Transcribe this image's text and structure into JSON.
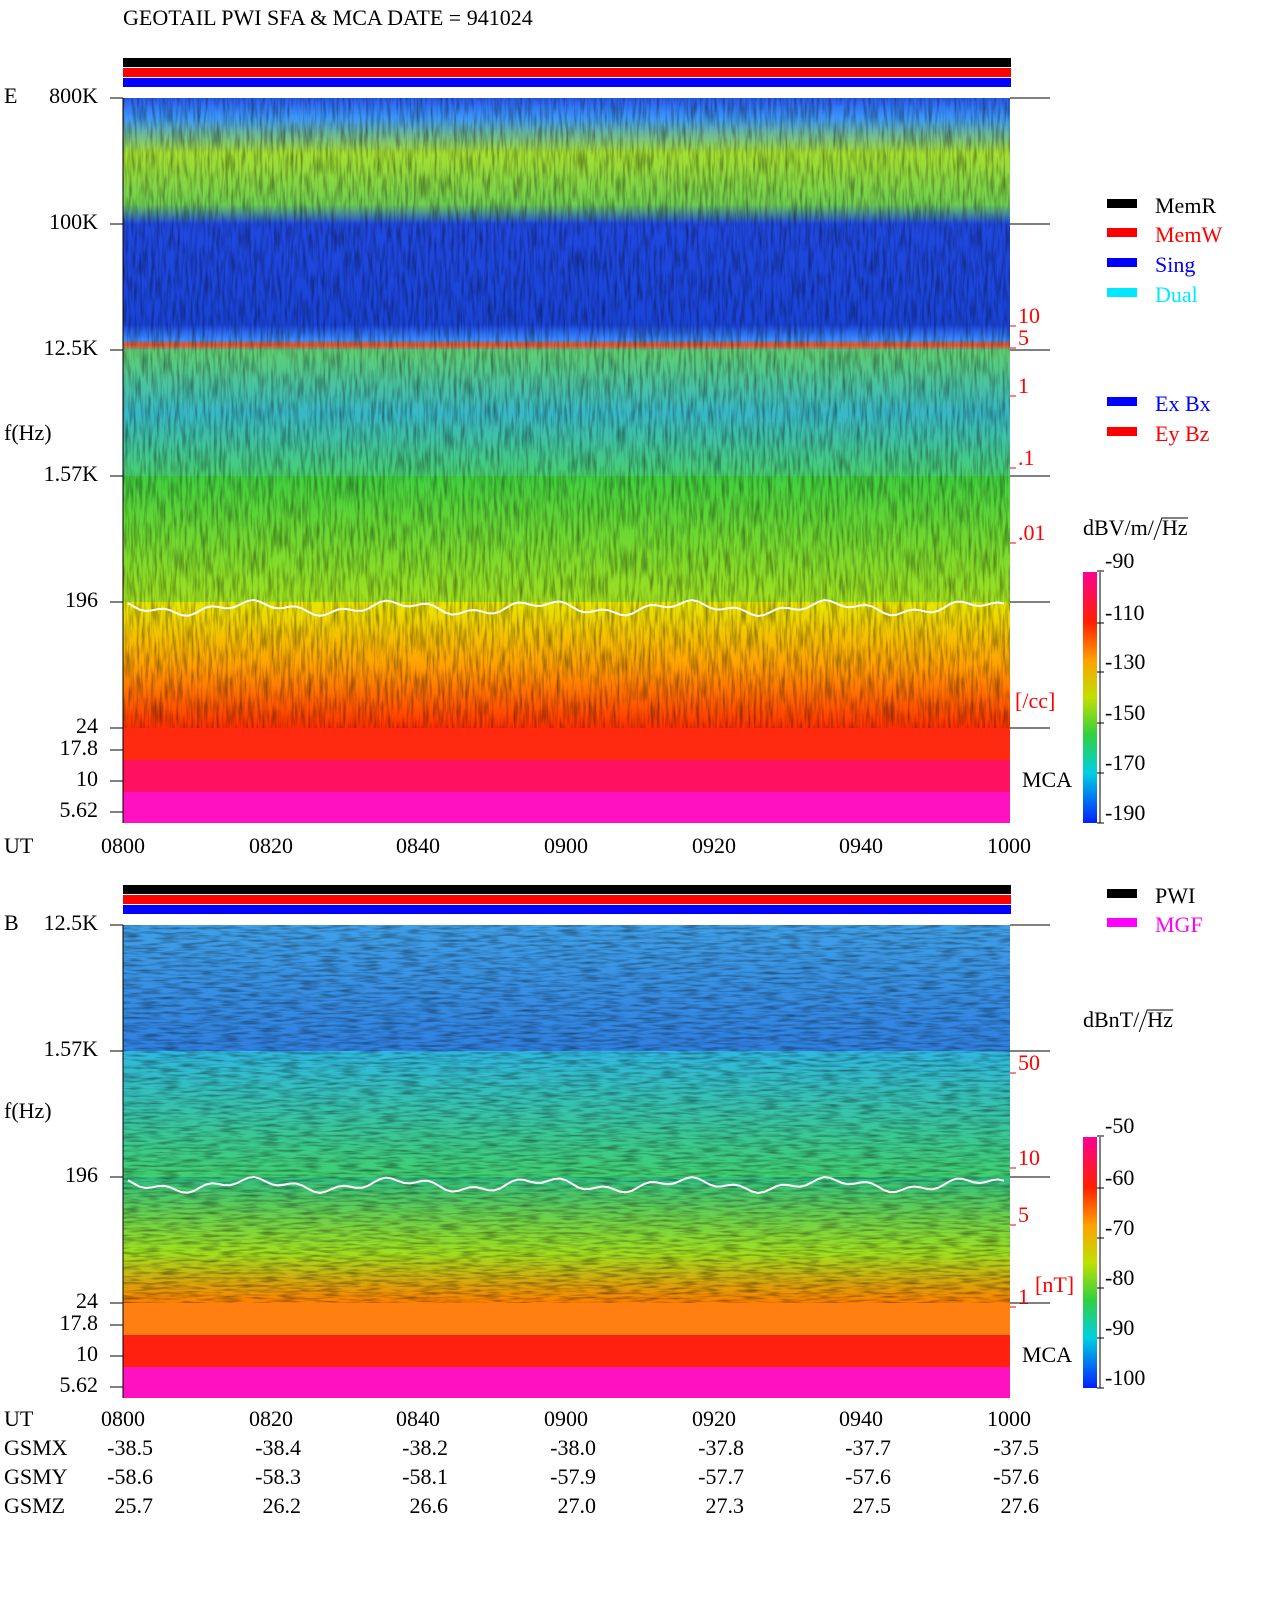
{
  "header": {
    "title": "GEOTAIL  PWI SFA & MCA   DATE = 941024"
  },
  "panels": [
    {
      "label": "E",
      "y_label": "f(Hz)",
      "y_ticks": [
        "800K",
        "100K",
        "12.5K",
        "1.57K",
        "196",
        "24",
        "17.8",
        "10",
        "5.62"
      ],
      "x_label": "UT",
      "x_ticks": [
        "0800",
        "0820",
        "0840",
        "0900",
        "0920",
        "0940",
        "1000"
      ],
      "density_ticks": [
        "10",
        "5",
        "1",
        ".1",
        ".01"
      ],
      "density_unit": "[/cc]",
      "mca_label": "MCA",
      "colorbar": {
        "unit": "dBV/m/",
        "unit_root": "Hz",
        "ticks": [
          -90,
          -110,
          -130,
          -150,
          -170,
          -190
        ]
      },
      "legend": [
        [
          {
            "label": "MemR",
            "color": "#000000"
          },
          {
            "label": "MemW",
            "color": "#ff0000"
          },
          {
            "label": "Sing",
            "color": "#0000ff"
          },
          {
            "label": "Dual",
            "color": "#00e8ff"
          }
        ],
        [
          {
            "label": "Ex Bx",
            "color": "#0000ff"
          },
          {
            "label": "Ey Bz",
            "color": "#ff0000"
          }
        ]
      ]
    },
    {
      "label": "B",
      "y_label": "f(Hz)",
      "y_ticks": [
        "12.5K",
        "1.57K",
        "196",
        "24",
        "17.8",
        "10",
        "5.62"
      ],
      "x_label": "UT",
      "x_ticks": [
        "0800",
        "0820",
        "0840",
        "0900",
        "0920",
        "0940",
        "1000"
      ],
      "density_ticks": [
        "50",
        "10",
        "5",
        "1"
      ],
      "density_unit": "[nT]",
      "mca_label": "MCA",
      "colorbar": {
        "unit": "dBnT/",
        "unit_root": "Hz",
        "ticks": [
          -50,
          -60,
          -70,
          -80,
          -90,
          -100
        ]
      },
      "legend": [
        [
          {
            "label": "PWI",
            "color": "#000000"
          },
          {
            "label": "MGF",
            "color": "#ff00ff"
          }
        ]
      ]
    }
  ],
  "orbit": {
    "rows": [
      {
        "label": "GSMX",
        "values": [
          "-38.5",
          "-38.4",
          "-38.2",
          "-38.0",
          "-37.8",
          "-37.7",
          "-37.5"
        ]
      },
      {
        "label": "GSMY",
        "values": [
          "-58.6",
          "-58.3",
          "-58.1",
          "-57.9",
          "-57.7",
          "-57.6",
          "-57.6"
        ]
      },
      {
        "label": "GSMZ",
        "values": [
          "25.7",
          "26.2",
          "26.6",
          "27.0",
          "27.3",
          "27.5",
          "27.6"
        ]
      }
    ]
  }
}
